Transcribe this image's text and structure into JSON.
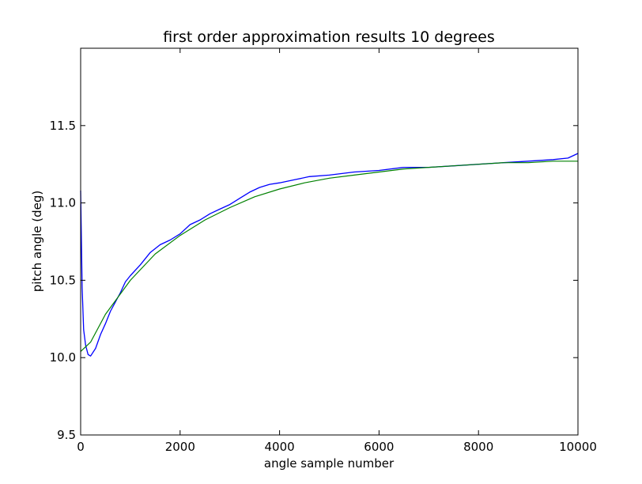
{
  "chart_data": {
    "type": "line",
    "title": "first order approximation results 10 degrees",
    "xlabel": "angle sample number",
    "ylabel": "pitch angle (deg)",
    "xlim": [
      0,
      10000
    ],
    "ylim": [
      9.5,
      12.0
    ],
    "xticks": [
      0,
      2000,
      4000,
      6000,
      8000,
      10000
    ],
    "xtick_labels": [
      "0",
      "2000",
      "4000",
      "6000",
      "8000",
      "10000"
    ],
    "yticks": [
      9.5,
      10.0,
      10.5,
      11.0,
      11.5
    ],
    "ytick_labels": [
      "9.5",
      "10.0",
      "10.5",
      "11.0",
      "11.5"
    ],
    "grid": false,
    "series": [
      {
        "color": "#0000ff",
        "x": [
          0,
          30,
          60,
          100,
          150,
          200,
          300,
          400,
          500,
          600,
          700,
          800,
          900,
          1000,
          1200,
          1400,
          1600,
          1800,
          2000,
          2200,
          2400,
          2600,
          2800,
          3000,
          3200,
          3400,
          3600,
          3800,
          4000,
          4300,
          4600,
          5000,
          5500,
          6000,
          6500,
          7000,
          7500,
          8000,
          8500,
          9000,
          9500,
          9800,
          10000
        ],
        "values": [
          11.08,
          10.45,
          10.18,
          10.08,
          10.02,
          10.01,
          10.06,
          10.15,
          10.22,
          10.3,
          10.36,
          10.42,
          10.49,
          10.53,
          10.6,
          10.68,
          10.73,
          10.76,
          10.8,
          10.86,
          10.89,
          10.93,
          10.96,
          10.99,
          11.03,
          11.07,
          11.1,
          11.12,
          11.13,
          11.15,
          11.17,
          11.18,
          11.2,
          11.21,
          11.23,
          11.23,
          11.24,
          11.25,
          11.26,
          11.27,
          11.28,
          11.29,
          11.32
        ]
      },
      {
        "color": "#008000",
        "x": [
          0,
          200,
          500,
          1000,
          1500,
          2000,
          2500,
          3000,
          3500,
          4000,
          4500,
          5000,
          5500,
          6000,
          6500,
          7000,
          7500,
          8000,
          8500,
          9000,
          9500,
          10000
        ],
        "values": [
          10.04,
          10.1,
          10.28,
          10.5,
          10.67,
          10.79,
          10.89,
          10.97,
          11.04,
          11.09,
          11.13,
          11.16,
          11.18,
          11.2,
          11.22,
          11.23,
          11.24,
          11.25,
          11.26,
          11.26,
          11.27,
          11.27
        ]
      }
    ]
  }
}
